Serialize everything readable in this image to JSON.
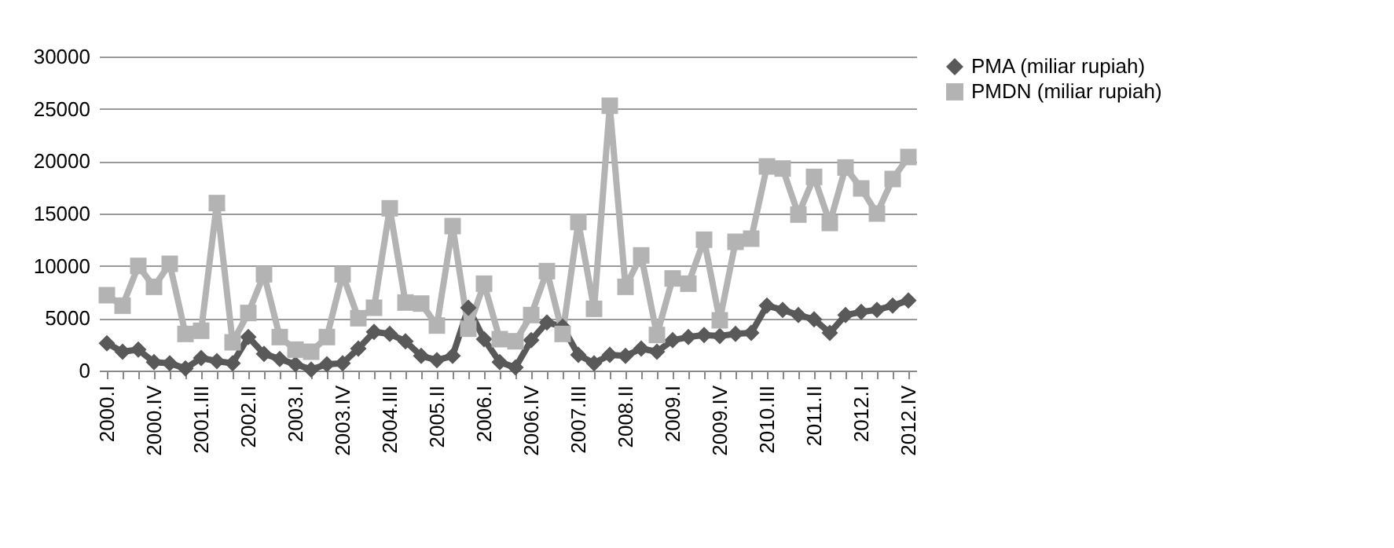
{
  "chart_data": {
    "type": "line",
    "categories": [
      "2000.I",
      null,
      null,
      "2000.IV",
      null,
      null,
      "2001.III",
      null,
      null,
      "2002.II",
      null,
      null,
      "2003.I",
      null,
      null,
      "2003.IV",
      null,
      null,
      "2004.III",
      null,
      null,
      "2005.II",
      null,
      null,
      "2006.I",
      null,
      null,
      "2006.IV",
      null,
      null,
      "2007.III",
      null,
      null,
      "2008.II",
      null,
      null,
      "2009.I",
      null,
      null,
      "2009.IV",
      null,
      null,
      "2010.III",
      null,
      null,
      "2011.II",
      null,
      null,
      "2012.I",
      null,
      null,
      "2012.IV"
    ],
    "series": [
      {
        "name": "PMA (miliar rupiah)",
        "color": "#595959",
        "marker": "diamond",
        "values": [
          2600,
          1800,
          2000,
          800,
          700,
          200,
          1200,
          900,
          700,
          3200,
          1600,
          1100,
          600,
          100,
          600,
          700,
          2100,
          3700,
          3500,
          2800,
          1400,
          1000,
          1400,
          6000,
          3000,
          800,
          300,
          2900,
          4600,
          4200,
          1500,
          700,
          1500,
          1400,
          2100,
          1800,
          2900,
          3200,
          3400,
          3300,
          3500,
          3600,
          6200,
          5800,
          5300,
          4900,
          3600,
          5300,
          5600,
          5800,
          6200,
          6700
        ]
      },
      {
        "name": "PMDN (miliar rupiah)",
        "color": "#b3b3b3",
        "marker": "square",
        "values": [
          7200,
          6200,
          10000,
          8000,
          10200,
          3500,
          3800,
          16000,
          2700,
          5500,
          9200,
          3200,
          2000,
          1800,
          3200,
          9200,
          5000,
          6000,
          15500,
          6500,
          6400,
          4300,
          13800,
          4000,
          8300,
          3000,
          2800,
          5300,
          9500,
          3500,
          14200,
          5900,
          25300,
          8000,
          11000,
          3400,
          8800,
          8300,
          12500,
          4800,
          12300,
          12600,
          19500,
          19300,
          14900,
          18500,
          14100,
          19400,
          17400,
          15000,
          18300,
          20400
        ]
      }
    ],
    "ylim": [
      0,
      30000
    ],
    "yticks": [
      0,
      5000,
      10000,
      15000,
      20000,
      25000,
      30000
    ],
    "grid": "y",
    "legend": "right"
  }
}
